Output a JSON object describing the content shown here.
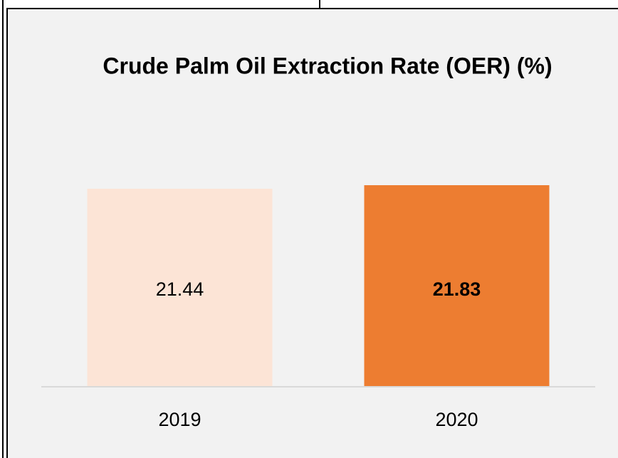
{
  "chart_data": {
    "type": "bar",
    "title": "Crude Palm Oil Extraction Rate (OER) (%)",
    "categories": [
      "2019",
      "2020"
    ],
    "values": [
      21.44,
      21.83
    ],
    "colors": [
      "#fce4d6",
      "#ed7d31"
    ]
  }
}
